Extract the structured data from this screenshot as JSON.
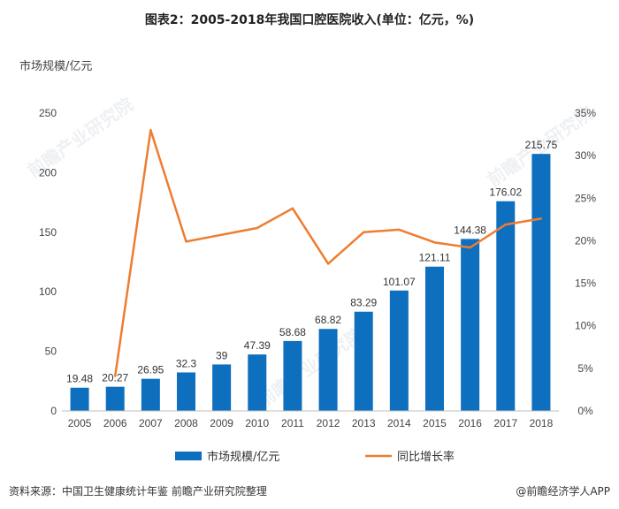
{
  "header": {
    "title": "图表2：2005-2018年我国口腔医院收入(单位：亿元，%)",
    "unit_label": "市场规模/亿元"
  },
  "footer": {
    "source": "资料来源：中国卫生健康统计年鉴 前瞻产业研究院整理",
    "brand": "@前瞻经济学人APP"
  },
  "watermark_text": "前瞻产业研究院",
  "chart_data": {
    "type": "bar",
    "categories": [
      "2005",
      "2006",
      "2007",
      "2008",
      "2009",
      "2010",
      "2011",
      "2012",
      "2013",
      "2014",
      "2015",
      "2016",
      "2017",
      "2018"
    ],
    "series": [
      {
        "name": "市场规模/亿元",
        "type": "bar",
        "color": "#0e6fbf",
        "values": [
          19.48,
          20.27,
          26.95,
          32.3,
          39,
          47.39,
          58.68,
          68.82,
          83.29,
          101.07,
          121.11,
          144.38,
          176.02,
          215.75
        ],
        "labels": [
          "19.48",
          "20.27",
          "26.95",
          "32.3",
          "39",
          "47.39",
          "58.68",
          "68.82",
          "83.29",
          "101.07",
          "121.11",
          "144.38",
          "176.02",
          "215.75"
        ]
      },
      {
        "name": "同比增长率",
        "type": "line",
        "color": "#ed7d31",
        "axis": "right",
        "values": [
          null,
          4.1,
          33.0,
          19.9,
          20.7,
          21.5,
          23.8,
          17.3,
          21.0,
          21.3,
          19.8,
          19.2,
          21.9,
          22.6
        ]
      }
    ],
    "y_left": {
      "ylim": [
        0,
        250
      ],
      "ticks": [
        "0",
        "50",
        "100",
        "150",
        "200",
        "250"
      ]
    },
    "y_right": {
      "ylim": [
        0,
        35
      ],
      "ticks": [
        "0%",
        "5%",
        "10%",
        "15%",
        "20%",
        "25%",
        "30%",
        "35%"
      ]
    },
    "legend_position": "bottom",
    "grid": false
  }
}
